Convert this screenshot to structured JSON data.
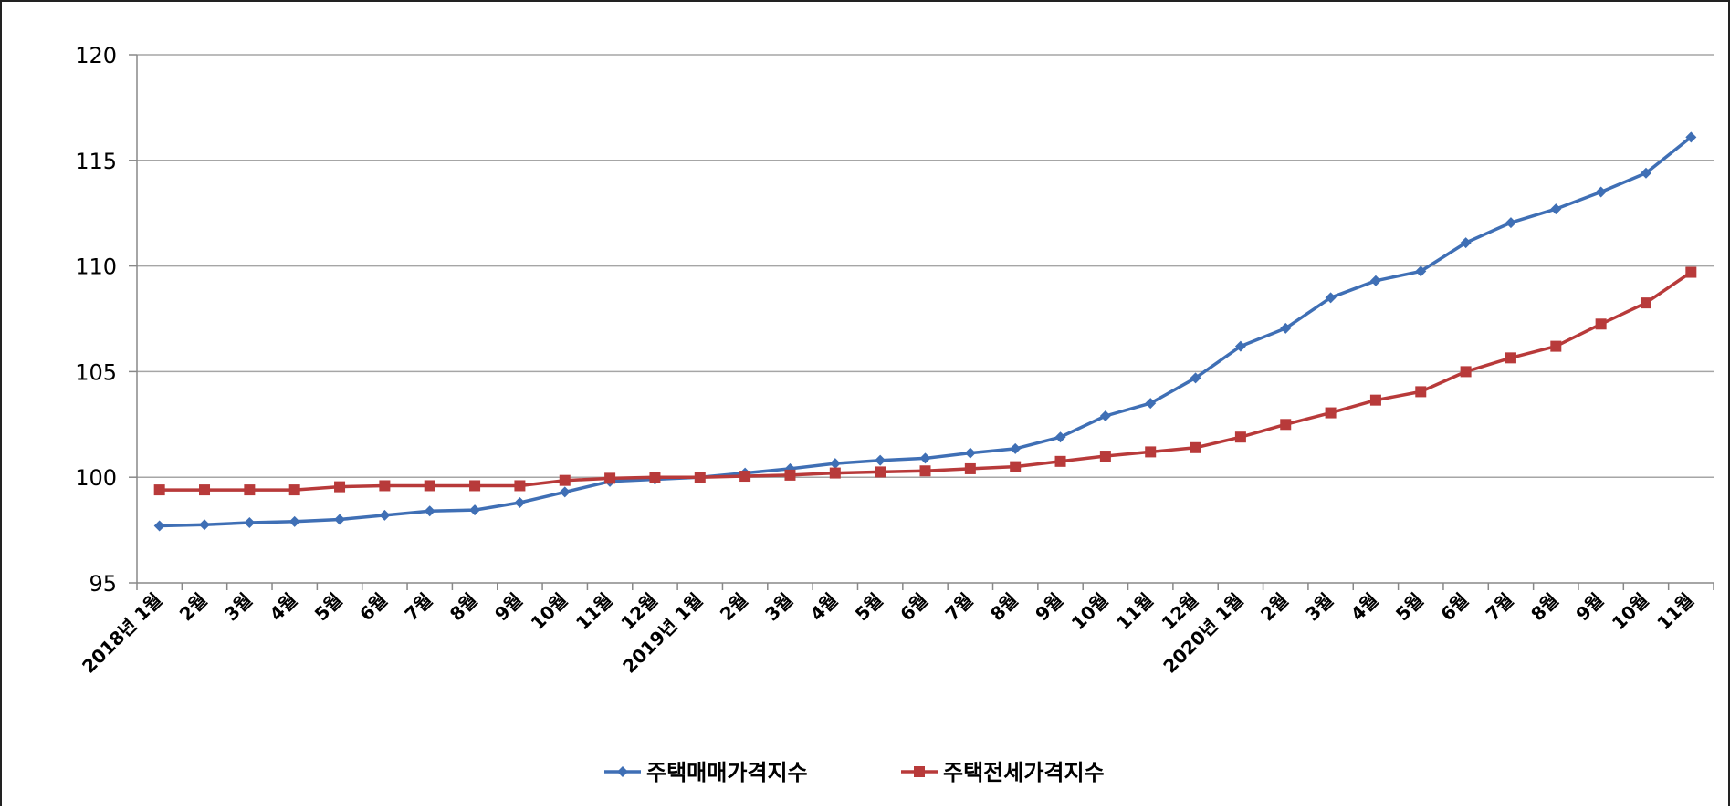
{
  "chart_data": {
    "type": "line",
    "categories": [
      "2018년 1월",
      "2월",
      "3월",
      "4월",
      "5월",
      "6월",
      "7월",
      "8월",
      "9월",
      "10월",
      "11월",
      "12월",
      "2019년 1월",
      "2월",
      "3월",
      "4월",
      "5월",
      "6월",
      "7월",
      "8월",
      "9월",
      "10월",
      "11월",
      "12월",
      "2020년 1월",
      "2월",
      "3월",
      "4월",
      "5월",
      "6월",
      "7월",
      "8월",
      "9월",
      "10월",
      "11월"
    ],
    "series": [
      {
        "name": "주택매매가격지수",
        "color": "#3f6fb5",
        "marker": "diamond",
        "values": [
          97.7,
          97.75,
          97.85,
          97.9,
          98.0,
          98.2,
          98.4,
          98.45,
          98.8,
          99.3,
          99.8,
          99.9,
          100.0,
          100.2,
          100.4,
          100.65,
          100.8,
          100.9,
          101.15,
          101.35,
          101.9,
          102.9,
          103.5,
          104.7,
          106.2,
          107.05,
          108.5,
          109.3,
          109.75,
          111.1,
          112.05,
          112.7,
          113.5,
          114.4,
          116.1
        ]
      },
      {
        "name": "주택전세가격지수",
        "color": "#b83a3a",
        "marker": "square",
        "values": [
          99.4,
          99.4,
          99.4,
          99.4,
          99.55,
          99.6,
          99.6,
          99.6,
          99.6,
          99.85,
          99.95,
          100.0,
          100.0,
          100.05,
          100.1,
          100.2,
          100.25,
          100.3,
          100.4,
          100.5,
          100.75,
          101.0,
          101.2,
          101.4,
          101.9,
          102.5,
          103.05,
          103.65,
          104.05,
          105.0,
          105.65,
          106.2,
          107.25,
          108.25,
          109.7
        ]
      }
    ],
    "yticks": [
      95,
      100,
      105,
      110,
      115,
      120
    ],
    "ylim": [
      95,
      120
    ],
    "title": "",
    "xlabel": "",
    "ylabel": "",
    "grid": true,
    "legend_position": "bottom"
  }
}
